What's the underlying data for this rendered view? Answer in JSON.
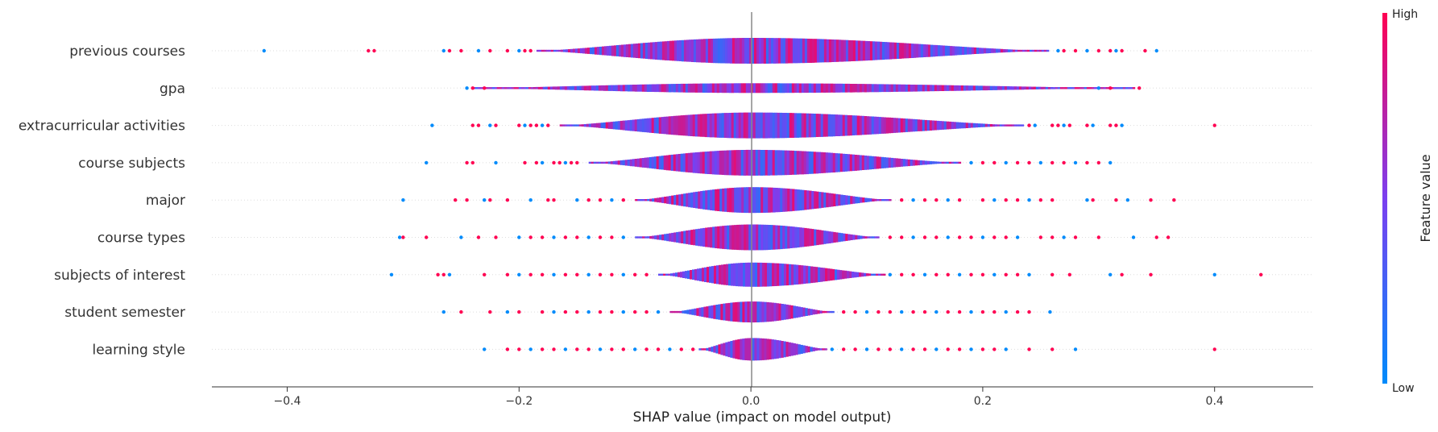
{
  "chart_data": {
    "type": "violin",
    "xlabel": "SHAP value (impact on model output)",
    "xlim": [
      -0.465,
      0.485
    ],
    "xticks": [
      -0.4,
      -0.2,
      0.0,
      0.2,
      0.4
    ],
    "xtick_labels": [
      "−0.4",
      "−0.2",
      "0.0",
      "0.2",
      "0.4"
    ],
    "features": [
      {
        "name": "previous courses",
        "range": [
          -0.42,
          0.35
        ],
        "body": [
          -0.185,
          0.255
        ],
        "outliers": [
          -0.42,
          -0.33,
          -0.325,
          -0.265,
          -0.26,
          -0.25,
          -0.235,
          -0.225,
          -0.21,
          -0.2,
          -0.195,
          -0.19,
          0.265,
          0.27,
          0.28,
          0.29,
          0.3,
          0.31,
          0.315,
          0.32,
          0.34,
          0.35
        ]
      },
      {
        "name": "gpa",
        "range": [
          -0.245,
          0.335
        ],
        "body": [
          -0.24,
          0.33
        ],
        "outliers": [
          -0.245,
          -0.24,
          -0.23,
          0.3,
          0.31,
          0.335
        ]
      },
      {
        "name": "extracurricular activities",
        "range": [
          -0.275,
          0.4
        ],
        "body": [
          -0.165,
          0.235
        ],
        "outliers": [
          -0.275,
          -0.24,
          -0.235,
          -0.225,
          -0.22,
          -0.2,
          -0.195,
          -0.19,
          -0.185,
          -0.18,
          -0.175,
          0.24,
          0.245,
          0.26,
          0.265,
          0.27,
          0.275,
          0.29,
          0.295,
          0.31,
          0.315,
          0.32,
          0.4
        ]
      },
      {
        "name": "course subjects",
        "range": [
          -0.28,
          0.31
        ],
        "body": [
          -0.14,
          0.18
        ],
        "outliers": [
          -0.28,
          -0.245,
          -0.24,
          -0.22,
          -0.195,
          -0.185,
          -0.18,
          -0.17,
          -0.165,
          -0.16,
          -0.155,
          -0.15,
          0.19,
          0.2,
          0.21,
          0.22,
          0.23,
          0.24,
          0.25,
          0.26,
          0.27,
          0.28,
          0.29,
          0.3,
          0.31
        ]
      },
      {
        "name": "major",
        "range": [
          -0.3,
          0.365
        ],
        "body": [
          -0.1,
          0.12
        ],
        "outliers": [
          -0.3,
          -0.255,
          -0.245,
          -0.23,
          -0.225,
          -0.21,
          -0.19,
          -0.175,
          -0.17,
          -0.15,
          -0.14,
          -0.13,
          -0.12,
          -0.11,
          0.13,
          0.14,
          0.15,
          0.16,
          0.17,
          0.18,
          0.2,
          0.21,
          0.22,
          0.23,
          0.24,
          0.25,
          0.26,
          0.29,
          0.295,
          0.315,
          0.325,
          0.345,
          0.365
        ]
      },
      {
        "name": "course types",
        "range": [
          -0.303,
          0.36
        ],
        "body": [
          -0.1,
          0.11
        ],
        "outliers": [
          -0.303,
          -0.3,
          -0.28,
          -0.25,
          -0.235,
          -0.22,
          -0.2,
          -0.19,
          -0.18,
          -0.17,
          -0.16,
          -0.15,
          -0.14,
          -0.13,
          -0.12,
          -0.11,
          0.12,
          0.13,
          0.14,
          0.15,
          0.16,
          0.17,
          0.18,
          0.19,
          0.2,
          0.21,
          0.22,
          0.23,
          0.25,
          0.26,
          0.27,
          0.28,
          0.3,
          0.33,
          0.35,
          0.36
        ]
      },
      {
        "name": "subjects of interest",
        "range": [
          -0.31,
          0.44
        ],
        "body": [
          -0.08,
          0.115
        ],
        "outliers": [
          -0.31,
          -0.27,
          -0.265,
          -0.26,
          -0.23,
          -0.21,
          -0.2,
          -0.19,
          -0.18,
          -0.17,
          -0.16,
          -0.15,
          -0.14,
          -0.13,
          -0.12,
          -0.11,
          -0.1,
          -0.09,
          0.12,
          0.13,
          0.14,
          0.15,
          0.16,
          0.17,
          0.18,
          0.19,
          0.2,
          0.21,
          0.22,
          0.23,
          0.24,
          0.26,
          0.275,
          0.31,
          0.32,
          0.345,
          0.4,
          0.44
        ]
      },
      {
        "name": "student semester",
        "range": [
          -0.265,
          0.258
        ],
        "body": [
          -0.07,
          0.07
        ],
        "outliers": [
          -0.265,
          -0.25,
          -0.225,
          -0.21,
          -0.2,
          -0.18,
          -0.17,
          -0.16,
          -0.15,
          -0.14,
          -0.13,
          -0.12,
          -0.11,
          -0.1,
          -0.09,
          -0.08,
          0.08,
          0.09,
          0.1,
          0.11,
          0.12,
          0.13,
          0.14,
          0.15,
          0.16,
          0.17,
          0.18,
          0.19,
          0.2,
          0.21,
          0.22,
          0.23,
          0.24,
          0.258
        ]
      },
      {
        "name": "learning style",
        "range": [
          -0.23,
          0.4
        ],
        "body": [
          -0.045,
          0.065
        ],
        "outliers": [
          -0.23,
          -0.21,
          -0.2,
          -0.19,
          -0.18,
          -0.17,
          -0.16,
          -0.15,
          -0.14,
          -0.13,
          -0.12,
          -0.11,
          -0.1,
          -0.09,
          -0.08,
          -0.07,
          -0.06,
          -0.05,
          0.07,
          0.08,
          0.09,
          0.1,
          0.11,
          0.12,
          0.13,
          0.14,
          0.15,
          0.16,
          0.17,
          0.18,
          0.19,
          0.2,
          0.21,
          0.22,
          0.24,
          0.26,
          0.28,
          0.4
        ]
      }
    ],
    "colorbar": {
      "label": "Feature value",
      "high_label": "High",
      "low_label": "Low",
      "high_color": "#ff0052",
      "mid_color": "#7b3ff0",
      "low_color": "#008bfb"
    }
  }
}
